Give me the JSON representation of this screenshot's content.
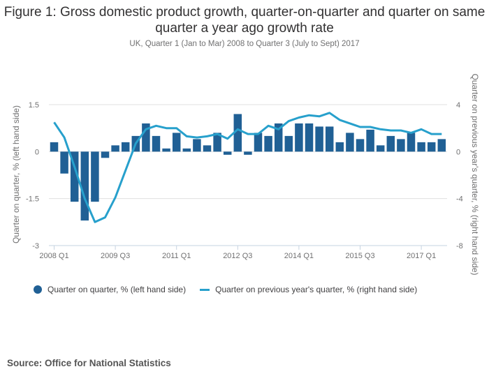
{
  "title": "Figure 1: Gross domestic product growth, quarter-on-quarter and quarter on same quarter a year ago growth rate",
  "subtitle": "UK, Quarter 1 (Jan to Mar) 2008 to Quarter 3 (July to Sept) 2017",
  "source": "Source: Office for National Statistics",
  "colors": {
    "bars": "#206095",
    "line": "#27a0cc",
    "grid": "#e0e0e0",
    "axis": "#c6d3e1"
  },
  "legend": [
    {
      "label": "Quarter on quarter, % (left hand side)",
      "marker": "circle"
    },
    {
      "label": "Quarter on previous year's quarter, % (right hand side)",
      "marker": "line"
    }
  ],
  "chart_data": {
    "type": "bar+line",
    "title": "Figure 1: Gross domestic product growth, quarter-on-quarter and quarter on same quarter a year ago growth rate",
    "subtitle": "UK, Quarter 1 (Jan to Mar) 2008 to Quarter 3 (July to Sept) 2017",
    "x": [
      "2008 Q1",
      "2008 Q2",
      "2008 Q3",
      "2008 Q4",
      "2009 Q1",
      "2009 Q2",
      "2009 Q3",
      "2009 Q4",
      "2010 Q1",
      "2010 Q2",
      "2010 Q3",
      "2010 Q4",
      "2011 Q1",
      "2011 Q2",
      "2011 Q3",
      "2011 Q4",
      "2012 Q1",
      "2012 Q2",
      "2012 Q3",
      "2012 Q4",
      "2013 Q1",
      "2013 Q2",
      "2013 Q3",
      "2013 Q4",
      "2014 Q1",
      "2014 Q2",
      "2014 Q3",
      "2014 Q4",
      "2015 Q1",
      "2015 Q2",
      "2015 Q3",
      "2015 Q4",
      "2016 Q1",
      "2016 Q2",
      "2016 Q3",
      "2016 Q4",
      "2017 Q1",
      "2017 Q2",
      "2017 Q3"
    ],
    "xticks": [
      "2008 Q1",
      "2009 Q3",
      "2011 Q1",
      "2012 Q3",
      "2014 Q1",
      "2015 Q3",
      "2017 Q1"
    ],
    "series": [
      {
        "name": "Quarter on quarter, % (left hand side)",
        "type": "bar",
        "axis": "left",
        "values": [
          0.3,
          -0.7,
          -1.6,
          -2.2,
          -1.6,
          -0.2,
          0.2,
          0.3,
          0.5,
          0.9,
          0.5,
          0.1,
          0.6,
          0.1,
          0.4,
          0.2,
          0.6,
          -0.1,
          1.2,
          -0.1,
          0.6,
          0.5,
          0.9,
          0.5,
          0.9,
          0.9,
          0.8,
          0.8,
          0.3,
          0.6,
          0.4,
          0.7,
          0.2,
          0.5,
          0.4,
          0.6,
          0.3,
          0.3,
          0.4
        ]
      },
      {
        "name": "Quarter on previous year's quarter, % (right hand side)",
        "type": "line",
        "axis": "right",
        "values": [
          2.5,
          1.2,
          -1.3,
          -4.0,
          -6.0,
          -5.6,
          -3.9,
          -1.6,
          0.7,
          1.9,
          2.2,
          2.0,
          2.0,
          1.3,
          1.2,
          1.3,
          1.5,
          1.1,
          1.9,
          1.5,
          1.5,
          2.2,
          1.9,
          2.6,
          2.9,
          3.1,
          3.0,
          3.3,
          2.7,
          2.4,
          2.1,
          2.1,
          1.9,
          1.8,
          1.8,
          1.6,
          1.9,
          1.5,
          1.5
        ]
      }
    ],
    "left_axis": {
      "label": "Quarter on quarter, % (left hand side)",
      "ylim": [
        -3,
        1.5
      ],
      "ticks": [
        1.5,
        0,
        -1.5,
        -3
      ],
      "tick_labels": [
        "1.5",
        "0",
        "-1.5",
        "-3"
      ]
    },
    "right_axis": {
      "label": "Quarter on previous year's quarter, % (right hand side)",
      "ylim": [
        -8,
        4
      ],
      "ticks": [
        4,
        0,
        -4,
        -8
      ],
      "tick_labels": [
        "4",
        "0",
        "-4",
        "-8"
      ]
    },
    "grid": true,
    "legend_position": "bottom"
  }
}
